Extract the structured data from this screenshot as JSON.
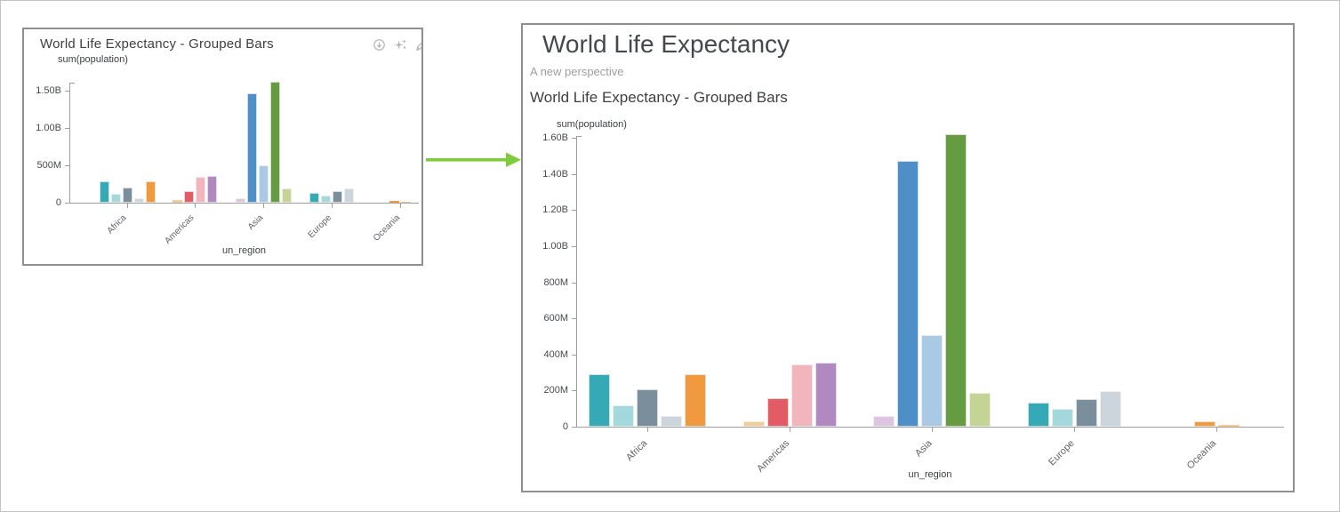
{
  "left_panel": {
    "title": "World Life Expectancy - Grouped Bars",
    "toolbar_icons": [
      {
        "name": "download-icon"
      },
      {
        "name": "sparkles-icon"
      },
      {
        "name": "edit-icon"
      }
    ]
  },
  "right_panel": {
    "title": "World Life Expectancy",
    "subtitle": "A new perspective",
    "chart_title": "World Life Expectancy - Grouped Bars"
  },
  "arrow": {
    "color": "#7ecb3c",
    "direction": "right"
  },
  "chart_data": [
    {
      "id": "overview-chart",
      "type": "bar",
      "title": "World Life Expectancy - Grouped Bars",
      "xlabel": "un_region",
      "ylabel": "sum(population)",
      "values_unit": "millions",
      "ylim_millions": [
        0,
        1650
      ],
      "grid": false,
      "legend": false,
      "categories": [
        "Africa",
        "Americas",
        "Asia",
        "Europe",
        "Oceania"
      ],
      "yticks": [
        {
          "label": "0",
          "value": 0
        },
        {
          "label": "500M",
          "value": 500
        },
        {
          "label": "1.00B",
          "value": 1000
        },
        {
          "label": "1.50B",
          "value": 1500
        }
      ],
      "groups": [
        {
          "category": "Africa",
          "bars": [
            {
              "color": "#35aab6",
              "value": 290
            },
            {
              "color": "#a3d8dd",
              "value": 120
            },
            {
              "color": "#7a8e9b",
              "value": 205
            },
            {
              "color": "#ccd5dc",
              "value": 60
            },
            {
              "color": "#f0993f",
              "value": 290
            }
          ]
        },
        {
          "category": "Americas",
          "bars": [
            {
              "color": "#f6cc96",
              "value": 30
            },
            {
              "color": "#e25c66",
              "value": 160
            },
            {
              "color": "#f3b5bd",
              "value": 345
            },
            {
              "color": "#b089c1",
              "value": 355
            }
          ]
        },
        {
          "category": "Asia",
          "bars": [
            {
              "color": "#ddc4e0",
              "value": 60
            },
            {
              "color": "#4e8fc7",
              "value": 1470
            },
            {
              "color": "#a9c9e5",
              "value": 505
            },
            {
              "color": "#659b41",
              "value": 1620
            },
            {
              "color": "#c3d494",
              "value": 185
            }
          ]
        },
        {
          "category": "Europe",
          "bars": [
            {
              "color": "#35aab6",
              "value": 135
            },
            {
              "color": "#a3d8dd",
              "value": 100
            },
            {
              "color": "#7a8e9b",
              "value": 155
            },
            {
              "color": "#ccd5dc",
              "value": 195
            }
          ]
        },
        {
          "category": "Oceania",
          "bars": [
            {
              "color": "#f0993f",
              "value": 28
            },
            {
              "color": "#f6cc96",
              "value": 8
            }
          ]
        }
      ]
    },
    {
      "id": "detail-chart",
      "type": "bar",
      "title": "World Life Expectancy - Grouped Bars",
      "xlabel": "un_region",
      "ylabel": "sum(population)",
      "values_unit": "millions",
      "ylim_millions": [
        0,
        1650
      ],
      "grid": false,
      "legend": false,
      "categories": [
        "Africa",
        "Americas",
        "Asia",
        "Europe",
        "Oceania"
      ],
      "yticks": [
        {
          "label": "0",
          "value": 0
        },
        {
          "label": "200M",
          "value": 200
        },
        {
          "label": "400M",
          "value": 400
        },
        {
          "label": "600M",
          "value": 600
        },
        {
          "label": "800M",
          "value": 800
        },
        {
          "label": "1.00B",
          "value": 1000
        },
        {
          "label": "1.20B",
          "value": 1200
        },
        {
          "label": "1.40B",
          "value": 1400
        },
        {
          "label": "1.60B",
          "value": 1600
        }
      ],
      "groups": [
        {
          "category": "Africa",
          "bars": [
            {
              "color": "#35aab6",
              "value": 290
            },
            {
              "color": "#a3d8dd",
              "value": 120
            },
            {
              "color": "#7a8e9b",
              "value": 205
            },
            {
              "color": "#ccd5dc",
              "value": 60
            },
            {
              "color": "#f0993f",
              "value": 290
            }
          ]
        },
        {
          "category": "Americas",
          "bars": [
            {
              "color": "#f6cc96",
              "value": 30
            },
            {
              "color": "#e25c66",
              "value": 160
            },
            {
              "color": "#f3b5bd",
              "value": 345
            },
            {
              "color": "#b089c1",
              "value": 355
            }
          ]
        },
        {
          "category": "Asia",
          "bars": [
            {
              "color": "#ddc4e0",
              "value": 60
            },
            {
              "color": "#4e8fc7",
              "value": 1470
            },
            {
              "color": "#a9c9e5",
              "value": 505
            },
            {
              "color": "#659b41",
              "value": 1620
            },
            {
              "color": "#c3d494",
              "value": 185
            }
          ]
        },
        {
          "category": "Europe",
          "bars": [
            {
              "color": "#35aab6",
              "value": 135
            },
            {
              "color": "#a3d8dd",
              "value": 100
            },
            {
              "color": "#7a8e9b",
              "value": 155
            },
            {
              "color": "#ccd5dc",
              "value": 195
            }
          ]
        },
        {
          "category": "Oceania",
          "bars": [
            {
              "color": "#f0993f",
              "value": 28
            },
            {
              "color": "#f6cc96",
              "value": 8
            }
          ]
        }
      ]
    }
  ]
}
